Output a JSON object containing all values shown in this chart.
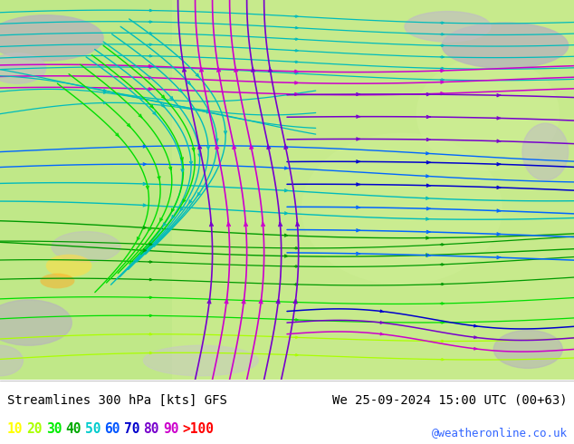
{
  "title_left": "Streamlines 300 hPa [kts] GFS",
  "title_right": "We 25-09-2024 15:00 UTC (00+63)",
  "credit": "@weatheronline.co.uk",
  "legend_values": [
    "10",
    "20",
    "30",
    "40",
    "50",
    "60",
    "70",
    "80",
    "90",
    ">100"
  ],
  "legend_colors": [
    "#ffff00",
    "#aaff00",
    "#00ee00",
    "#00aa00",
    "#00cccc",
    "#0055ff",
    "#0000cc",
    "#7700cc",
    "#cc00cc",
    "#ff0000"
  ],
  "figsize": [
    6.34,
    4.9
  ],
  "dpi": 100,
  "bottom_panel_color": "#ffffff",
  "text_color": "#000000",
  "credit_color": "#3366ff",
  "map_green": "#b8e878",
  "map_green2": "#c8f088",
  "gray1": "#b0b0b0",
  "gray2": "#c0c0c0"
}
